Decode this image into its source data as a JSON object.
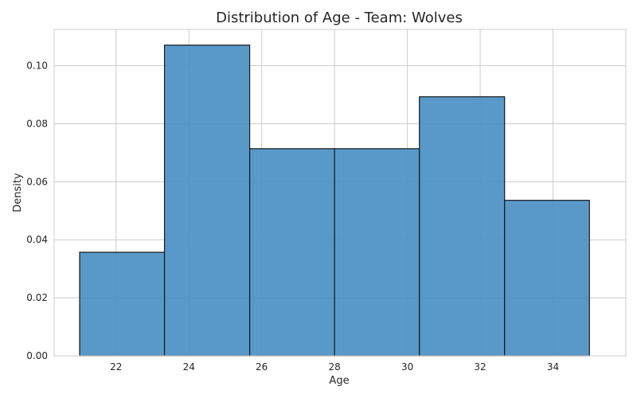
{
  "chart_data": {
    "type": "bar",
    "title": "Distribution of Age - Team: Wolves",
    "xlabel": "Age",
    "ylabel": "Density",
    "bins": [
      {
        "start": 21.0,
        "end": 23.33,
        "value": 0.0357
      },
      {
        "start": 23.33,
        "end": 25.67,
        "value": 0.1071
      },
      {
        "start": 25.67,
        "end": 28.0,
        "value": 0.0714
      },
      {
        "start": 28.0,
        "end": 30.33,
        "value": 0.0714
      },
      {
        "start": 30.33,
        "end": 32.67,
        "value": 0.0893
      },
      {
        "start": 32.67,
        "end": 35.0,
        "value": 0.0536
      }
    ],
    "xlim": [
      20.3,
      36.0
    ],
    "ylim": [
      0,
      0.1125
    ],
    "x_ticks": [
      22,
      24,
      26,
      28,
      30,
      32,
      34
    ],
    "y_ticks": [
      0.0,
      0.02,
      0.04,
      0.06,
      0.08,
      0.1
    ],
    "x_tick_labels": [
      "22",
      "24",
      "26",
      "28",
      "30",
      "32",
      "34"
    ],
    "y_tick_labels": [
      "0.00",
      "0.02",
      "0.04",
      "0.06",
      "0.08",
      "0.10"
    ],
    "grid": true,
    "bar_color": "#4a90c4",
    "edge_color": "#1a1a1a"
  }
}
